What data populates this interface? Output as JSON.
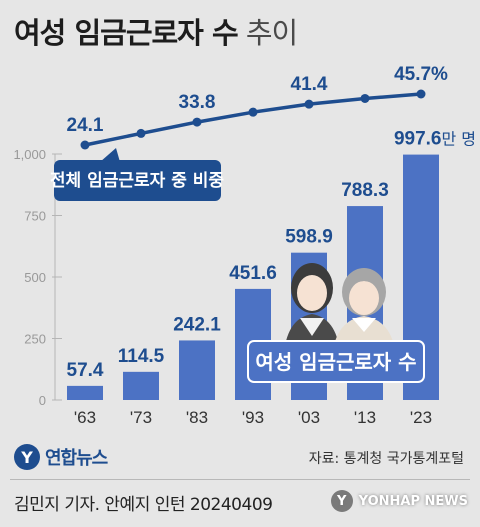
{
  "title": {
    "bold": "여성 임금근로자 수",
    "light": "추이"
  },
  "chart_data": [
    {
      "type": "bar",
      "series_label": "여성 임금근로자 수",
      "unit": "만 명",
      "categories": [
        "'63",
        "'73",
        "'83",
        "'93",
        "'03",
        "'13",
        "'23"
      ],
      "values": [
        57.4,
        114.5,
        242.1,
        451.6,
        598.9,
        788.3,
        997.6
      ],
      "value_labels": [
        "57.4",
        "114.5",
        "242.1",
        "451.6",
        "598.9",
        "788.3",
        "997.6"
      ],
      "y_ticks": [
        "0",
        "250",
        "500",
        "750",
        "1,000"
      ],
      "ylim": [
        0,
        1000
      ],
      "bar_color": "#4c72c4"
    },
    {
      "type": "line",
      "series_label": "전체 임금근로자 중 비중",
      "labeled_points": [
        {
          "index": 0,
          "value": 24.1,
          "label": "24.1"
        },
        {
          "index": 2,
          "value": 33.8,
          "label": "33.8"
        },
        {
          "index": 4,
          "value": 41.4,
          "label": "41.4"
        },
        {
          "index": 6,
          "value": 45.7,
          "label": "45.7%"
        }
      ],
      "values": [
        24.1,
        29.0,
        33.8,
        38.0,
        41.4,
        43.8,
        45.7
      ],
      "line_color": "#1e4d8f"
    }
  ],
  "footer": {
    "logo_text": "연합뉴스",
    "source": "자료: 통계청 국가통계포털",
    "credit": "김민지 기자. 안예지 인턴  20240409",
    "watermark": "YONHAP NEWS"
  }
}
